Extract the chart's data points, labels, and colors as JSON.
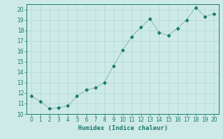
{
  "x": [
    0,
    1,
    2,
    3,
    4,
    5,
    6,
    7,
    8,
    9,
    10,
    11,
    12,
    13,
    14,
    15,
    16,
    17,
    18,
    19,
    20
  ],
  "y": [
    11.7,
    11.2,
    10.5,
    10.6,
    10.8,
    11.7,
    12.3,
    12.5,
    13.0,
    14.6,
    16.1,
    17.4,
    18.3,
    19.1,
    17.8,
    17.5,
    18.2,
    19.0,
    20.2,
    19.3,
    19.6
  ],
  "line_color": "#1a7a6e",
  "marker": "D",
  "markersize": 2.5,
  "linewidth": 0.8,
  "bg_color": "#ceeae7",
  "grid_color": "#b2d8d4",
  "xlabel": "Humidex (Indice chaleur)",
  "ylabel": "",
  "xlim": [
    -0.5,
    20.5
  ],
  "ylim": [
    10.0,
    20.5
  ],
  "xticks": [
    0,
    1,
    2,
    3,
    4,
    5,
    6,
    7,
    8,
    9,
    10,
    11,
    12,
    13,
    14,
    15,
    16,
    17,
    18,
    19,
    20
  ],
  "yticks": [
    10,
    11,
    12,
    13,
    14,
    15,
    16,
    17,
    18,
    19,
    20
  ],
  "tick_fontsize": 5.5,
  "xlabel_fontsize": 6.5,
  "tick_color": "#1a7a6e",
  "axis_color": "#1a7a6e"
}
